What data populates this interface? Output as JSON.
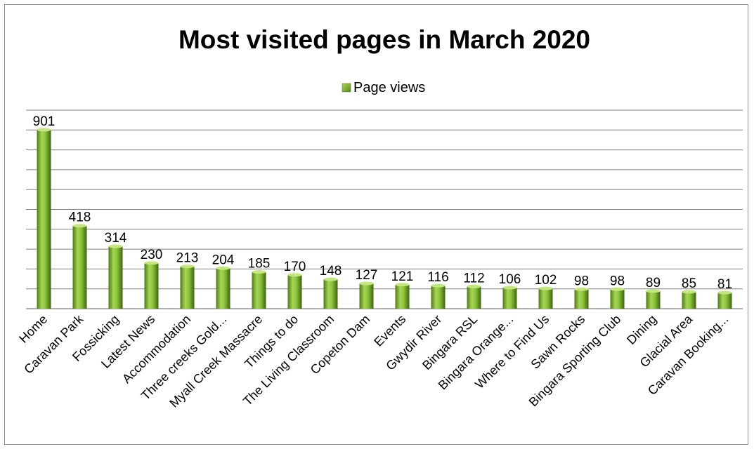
{
  "chart_data": {
    "type": "bar",
    "title": "Most visited pages in March 2020",
    "xlabel": "",
    "ylabel": "",
    "legend": {
      "position": "top",
      "entries": [
        "Page views"
      ]
    },
    "grid": true,
    "ylim": [
      0,
      1000
    ],
    "categories": [
      "Home",
      "Caravan Park",
      "Fossicking",
      "Latest News",
      "Accommodation",
      "Three creeks Gold...",
      "Myall Creek Massacre",
      "Things to do",
      "The Living Classroom",
      "Copeton Dam",
      "Events",
      "Gwydir River",
      "Bingara RSL",
      "Bingara Orange...",
      "Where to Find Us",
      "Sawn Rocks",
      "Bingara Sporting Club",
      "Dining",
      "Glacial Area",
      "Caravan Booking..."
    ],
    "series": [
      {
        "name": "Page views",
        "color": "#8dc63f",
        "values": [
          901,
          418,
          314,
          230,
          213,
          204,
          185,
          170,
          148,
          127,
          121,
          116,
          112,
          106,
          102,
          98,
          98,
          89,
          85,
          81
        ]
      }
    ]
  }
}
